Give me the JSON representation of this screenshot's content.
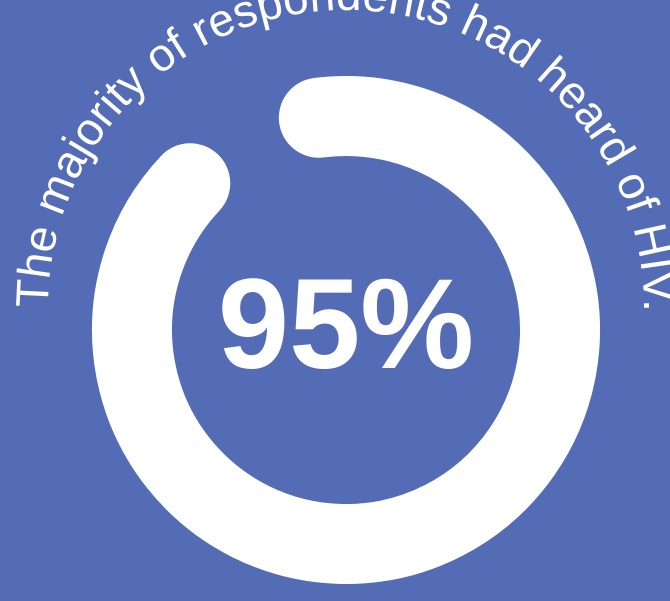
{
  "colors": {
    "background": "#546cb6",
    "ring": "#ffffff",
    "text": "#ffffff"
  },
  "caption": "The majority of respondents had heard of HIV.",
  "chart_data": {
    "type": "pie",
    "style": "donut",
    "categories": [
      "Heard of HIV"
    ],
    "values": [
      95
    ],
    "value_label": "95%",
    "unit": "%",
    "max": 100,
    "title": "The majority of respondents had heard of HIV."
  }
}
